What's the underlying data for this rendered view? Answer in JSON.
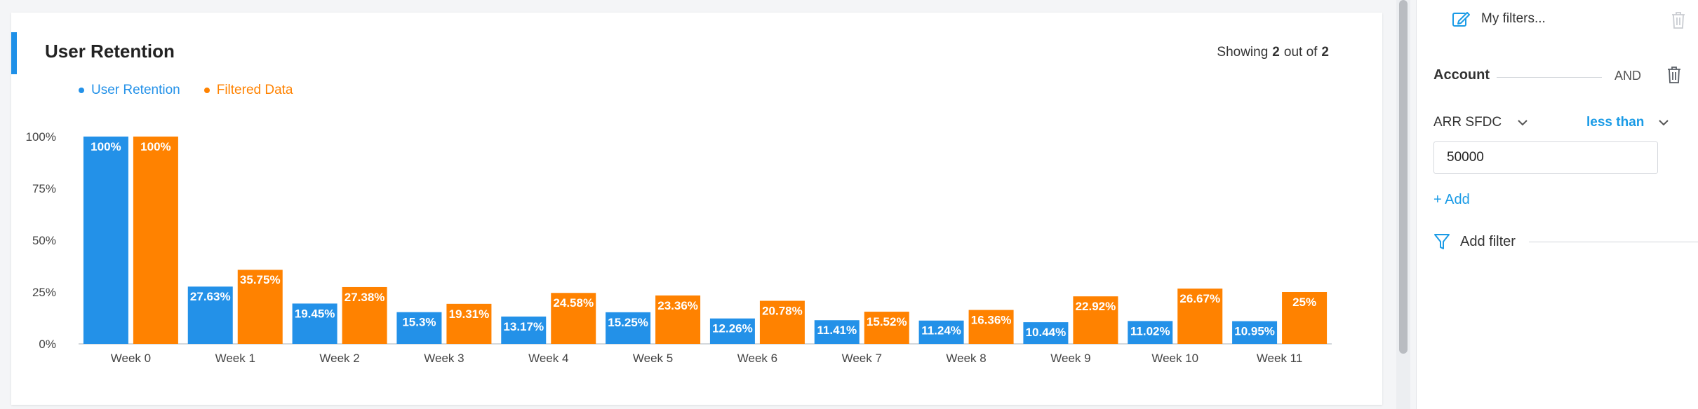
{
  "chart_card": {
    "title": "User Retention",
    "showing_prefix": "Showing",
    "showing_count": "2",
    "showing_mid": "out of",
    "showing_total": "2"
  },
  "chart_data": {
    "type": "bar",
    "title": "User Retention",
    "categories": [
      "Week 0",
      "Week 1",
      "Week 2",
      "Week 3",
      "Week 4",
      "Week 5",
      "Week 6",
      "Week 7",
      "Week 8",
      "Week 9",
      "Week 10",
      "Week 11"
    ],
    "series": [
      {
        "name": "User Retention",
        "color": "#2391e8",
        "values": [
          100,
          27.63,
          19.45,
          15.3,
          13.17,
          15.25,
          12.26,
          11.41,
          11.24,
          10.44,
          11.02,
          10.95
        ],
        "labels": [
          "100%",
          "27.63%",
          "19.45%",
          "15.3%",
          "13.17%",
          "15.25%",
          "12.26%",
          "11.41%",
          "11.24%",
          "10.44%",
          "11.02%",
          "10.95%"
        ]
      },
      {
        "name": "Filtered Data",
        "color": "#ff8200",
        "values": [
          100,
          35.75,
          27.38,
          19.31,
          24.58,
          23.36,
          20.78,
          15.52,
          16.36,
          22.92,
          26.67,
          25
        ],
        "labels": [
          "100%",
          "35.75%",
          "27.38%",
          "19.31%",
          "24.58%",
          "23.36%",
          "20.78%",
          "15.52%",
          "16.36%",
          "22.92%",
          "26.67%",
          "25%"
        ]
      }
    ],
    "y_ticks": [
      0,
      25,
      50,
      75,
      100
    ],
    "y_tick_labels": [
      "0%",
      "25%",
      "50%",
      "75%",
      "100%"
    ],
    "ylim": [
      0,
      100
    ],
    "legend_position": "top-left",
    "grid": false
  },
  "filter_panel": {
    "my_filters_label": "My filters...",
    "account_label": "Account",
    "and_label": "AND",
    "field_label": "ARR SFDC",
    "operator_label": "less than",
    "value": "50000",
    "add_label": "+ Add",
    "add_filter_label": "Add filter",
    "icons": [
      "edit-icon",
      "trash-icon",
      "chevron-down-icon",
      "filter-funnel-icon"
    ],
    "accent_color": "#1a9be6"
  }
}
